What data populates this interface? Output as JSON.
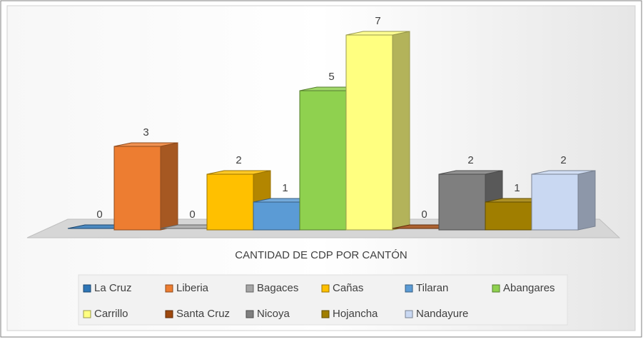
{
  "chart_data": {
    "type": "bar3d",
    "title": "CANTIDAD DE CDP POR CANTÓN",
    "categories": [
      "La Cruz",
      "Liberia",
      "Bagaces",
      "Cañas",
      "Tilaran",
      "Abangares",
      "Carrillo",
      "Santa Cruz",
      "Nicoya",
      "Hojancha",
      "Nandayure"
    ],
    "values": [
      0,
      3,
      0,
      2,
      1,
      5,
      7,
      0,
      2,
      1,
      2
    ],
    "colors": [
      "#2e75b6",
      "#ed7d31",
      "#a5a5a5",
      "#ffc000",
      "#5b9bd5",
      "#8fd14f",
      "#ffff80",
      "#9e480e",
      "#7f7f7f",
      "#a07e00",
      "#c9d8f2"
    ],
    "legend": "bottom"
  }
}
